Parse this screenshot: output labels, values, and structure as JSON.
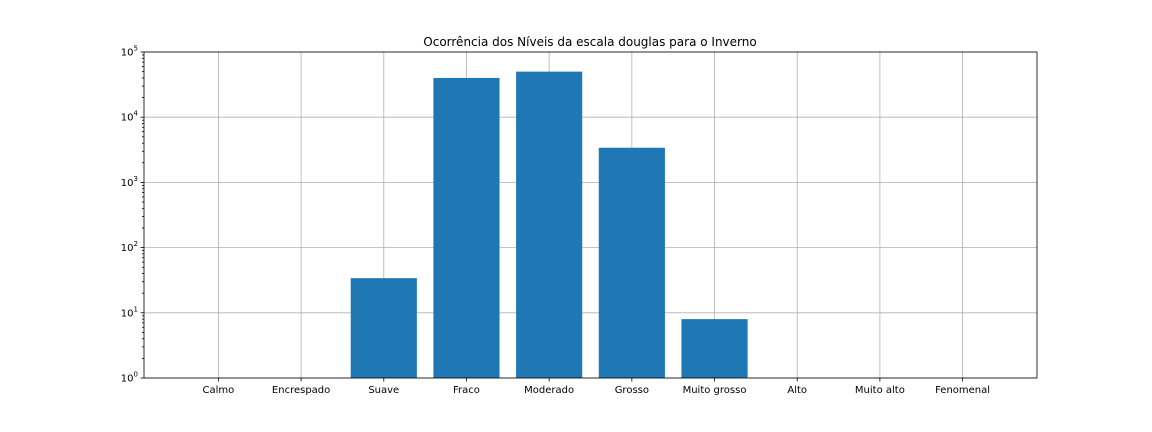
{
  "chart_data": {
    "type": "bar",
    "title": "Ocorrência dos Níveis da escala douglas para o Inverno",
    "xlabel": "",
    "ylabel": "",
    "yscale": "log",
    "ylim": [
      1,
      100000
    ],
    "grid": true,
    "bar_color": "#1f77b4",
    "categories": [
      "Calmo",
      "Encrespado",
      "Suave",
      "Fraco",
      "Moderado",
      "Grosso",
      "Muito grosso",
      "Alto",
      "Muito alto",
      "Fenomenal"
    ],
    "values": [
      0,
      0,
      34,
      40000,
      50000,
      3400,
      8,
      0,
      0,
      0
    ],
    "y_ticks": [
      {
        "value": 1,
        "base": "10",
        "exp": "0"
      },
      {
        "value": 10,
        "base": "10",
        "exp": "1"
      },
      {
        "value": 100,
        "base": "10",
        "exp": "2"
      },
      {
        "value": 1000,
        "base": "10",
        "exp": "3"
      },
      {
        "value": 10000,
        "base": "10",
        "exp": "4"
      },
      {
        "value": 100000,
        "base": "10",
        "exp": "5"
      }
    ]
  }
}
